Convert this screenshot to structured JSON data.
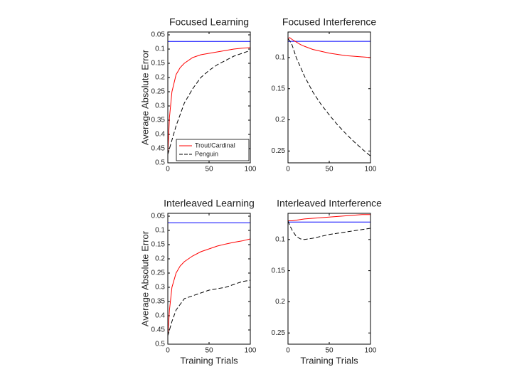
{
  "chart_data": [
    {
      "type": "line",
      "title": "Focused Learning",
      "y_label": "Average Absolute Error",
      "x": [
        0,
        2,
        5,
        10,
        15,
        20,
        30,
        40,
        50,
        60,
        70,
        80,
        90,
        100
      ],
      "xlim": [
        0,
        100
      ],
      "xticks": [
        0,
        50,
        100
      ],
      "ylim": [
        0.5,
        0.04
      ],
      "yticks": [
        0.05,
        0.1,
        0.15,
        0.2,
        0.25,
        0.3,
        0.35,
        0.4,
        0.45,
        0.5
      ],
      "legend": "lower right",
      "series": [
        {
          "color": "#0000ff",
          "values": [
            0.073,
            0.073,
            0.073,
            0.073,
            0.073,
            0.073,
            0.073,
            0.073,
            0.073,
            0.073,
            0.073,
            0.073,
            0.073,
            0.073
          ]
        },
        {
          "name": "Trout/Cardinal",
          "color": "#ff0000",
          "values": [
            0.47,
            0.34,
            0.25,
            0.19,
            0.165,
            0.15,
            0.13,
            0.12,
            0.115,
            0.11,
            0.105,
            0.1,
            0.097,
            0.095
          ]
        },
        {
          "name": "Penguin",
          "color": "#000000",
          "dash": true,
          "values": [
            0.47,
            0.45,
            0.42,
            0.37,
            0.33,
            0.29,
            0.24,
            0.2,
            0.175,
            0.155,
            0.14,
            0.125,
            0.115,
            0.105
          ]
        }
      ]
    },
    {
      "type": "line",
      "title": "Focused Interference",
      "x": [
        0,
        2,
        5,
        10,
        15,
        20,
        30,
        40,
        50,
        60,
        70,
        80,
        90,
        100
      ],
      "xlim": [
        0,
        100
      ],
      "xticks": [
        0,
        50,
        100
      ],
      "ylim": [
        0.269,
        0.059
      ],
      "yticks": [
        0.1,
        0.15,
        0.2,
        0.25
      ],
      "series": [
        {
          "color": "#0000ff",
          "values": [
            0.074,
            0.074,
            0.074,
            0.074,
            0.074,
            0.074,
            0.074,
            0.074,
            0.074,
            0.074,
            0.074,
            0.074,
            0.074,
            0.074
          ]
        },
        {
          "color": "#ff0000",
          "values": [
            0.07,
            0.068,
            0.071,
            0.075,
            0.079,
            0.082,
            0.087,
            0.09,
            0.093,
            0.095,
            0.097,
            0.098,
            0.099,
            0.1
          ]
        },
        {
          "color": "#000000",
          "dash": true,
          "values": [
            0.07,
            0.073,
            0.08,
            0.1,
            0.115,
            0.13,
            0.155,
            0.175,
            0.192,
            0.208,
            0.222,
            0.235,
            0.247,
            0.258
          ]
        }
      ]
    },
    {
      "type": "line",
      "title": "Interleaved Learning",
      "y_label": "Average Absolute Error",
      "x_label": "Training Trials",
      "x": [
        0,
        2,
        5,
        10,
        15,
        20,
        30,
        40,
        50,
        60,
        70,
        80,
        90,
        100
      ],
      "xlim": [
        0,
        100
      ],
      "xticks": [
        0,
        50,
        100
      ],
      "ylim": [
        0.5,
        0.04
      ],
      "yticks": [
        0.05,
        0.1,
        0.15,
        0.2,
        0.25,
        0.3,
        0.35,
        0.4,
        0.45,
        0.5
      ],
      "series": [
        {
          "color": "#0000ff",
          "values": [
            0.073,
            0.073,
            0.073,
            0.073,
            0.073,
            0.073,
            0.073,
            0.073,
            0.073,
            0.073,
            0.073,
            0.073,
            0.073,
            0.073
          ]
        },
        {
          "color": "#ff0000",
          "values": [
            0.47,
            0.38,
            0.3,
            0.25,
            0.225,
            0.21,
            0.19,
            0.175,
            0.165,
            0.155,
            0.148,
            0.142,
            0.137,
            0.13
          ]
        },
        {
          "color": "#000000",
          "dash": true,
          "values": [
            0.47,
            0.45,
            0.42,
            0.38,
            0.36,
            0.34,
            0.33,
            0.32,
            0.31,
            0.305,
            0.3,
            0.29,
            0.28,
            0.275
          ]
        }
      ]
    },
    {
      "type": "line",
      "title": "Interleaved Interference",
      "x_label": "Training Trials",
      "x": [
        0,
        2,
        5,
        10,
        15,
        20,
        30,
        40,
        50,
        60,
        70,
        80,
        90,
        100
      ],
      "xlim": [
        0,
        100
      ],
      "xticks": [
        0,
        50,
        100
      ],
      "ylim": [
        0.268,
        0.058
      ],
      "yticks": [
        0.1,
        0.15,
        0.2,
        0.25
      ],
      "series": [
        {
          "color": "#0000ff",
          "values": [
            0.072,
            0.072,
            0.072,
            0.072,
            0.072,
            0.072,
            0.072,
            0.072,
            0.072,
            0.072,
            0.072,
            0.072,
            0.072,
            0.072
          ]
        },
        {
          "color": "#ff0000",
          "values": [
            0.07,
            0.07,
            0.07,
            0.069,
            0.068,
            0.067,
            0.066,
            0.065,
            0.064,
            0.063,
            0.062,
            0.061,
            0.06,
            0.06
          ]
        },
        {
          "color": "#000000",
          "dash": true,
          "values": [
            0.07,
            0.077,
            0.085,
            0.095,
            0.099,
            0.1,
            0.098,
            0.095,
            0.092,
            0.09,
            0.088,
            0.086,
            0.084,
            0.082
          ]
        }
      ]
    }
  ]
}
